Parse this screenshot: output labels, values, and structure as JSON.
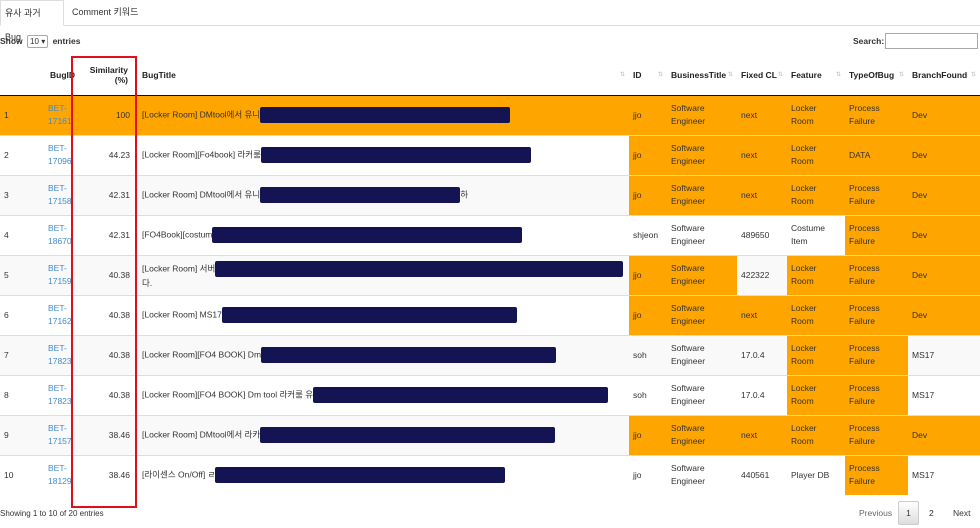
{
  "tabs": [
    "유사 과거 Bug",
    "Comment 키워드"
  ],
  "length_menu": {
    "prefix": "Show",
    "value": "10",
    "suffix": "entries"
  },
  "search": {
    "label": "Search:",
    "value": ""
  },
  "columns": [
    "BugID",
    "Similarity (%)",
    "BugTitle",
    "ID",
    "BusinessTitle",
    "Fixed CL",
    "Feature",
    "TypeOfBug",
    "BranchFound"
  ],
  "rows": [
    {
      "n": "1",
      "bug_id": "BET-17161",
      "similarity": "100",
      "title": "[Locker Room] DMtool에서 유니",
      "id": "jjo",
      "business_title": "Software Engineer",
      "fixed_cl": "next",
      "feature": "Locker Room",
      "type": "Process Failure",
      "branch": "Dev"
    },
    {
      "n": "2",
      "bug_id": "BET-17096",
      "similarity": "44.23",
      "title": "[Locker Room][Fo4book] 라커룸",
      "id": "jjo",
      "business_title": "Software Engineer",
      "fixed_cl": "next",
      "feature": "Locker Room",
      "type": "DATA",
      "branch": "Dev"
    },
    {
      "n": "3",
      "bug_id": "BET-17158",
      "similarity": "42.31",
      "title": "[Locker Room] DMtool에서 유니",
      "title_tail": "하",
      "id": "jjo",
      "business_title": "Software Engineer",
      "fixed_cl": "next",
      "feature": "Locker Room",
      "type": "Process Failure",
      "branch": "Dev"
    },
    {
      "n": "4",
      "bug_id": "BET-18670",
      "similarity": "42.31",
      "title": "[FO4Book][costum",
      "id": "shjeon",
      "business_title": "Software Engineer",
      "fixed_cl": "489650",
      "feature": "Costume Item",
      "type": "Process Failure",
      "branch": "Dev"
    },
    {
      "n": "5",
      "bug_id": "BET-17159",
      "similarity": "40.38",
      "title": "[Locker Room] 서버",
      "title_line2": "다.",
      "id": "jjo",
      "business_title": "Software Engineer",
      "fixed_cl": "422322",
      "feature": "Locker Room",
      "type": "Process Failure",
      "branch": "Dev"
    },
    {
      "n": "6",
      "bug_id": "BET-17162",
      "similarity": "40.38",
      "title": "[Locker Room] MS17",
      "id": "jjo",
      "business_title": "Software Engineer",
      "fixed_cl": "next",
      "feature": "Locker Room",
      "type": "Process Failure",
      "branch": "Dev"
    },
    {
      "n": "7",
      "bug_id": "BET-17823",
      "similarity": "40.38",
      "title": "[Locker Room][FO4 BOOK] Dm",
      "id": "soh",
      "business_title": "Software Engineer",
      "fixed_cl": "17.0.4",
      "feature": "Locker Room",
      "type": "Process Failure",
      "branch": "MS17"
    },
    {
      "n": "8",
      "bug_id": "BET-17823",
      "similarity": "40.38",
      "title": "[Locker Room][FO4 BOOK] Dm tool 라커룸 유",
      "id": "soh",
      "business_title": "Software Engineer",
      "fixed_cl": "17.0.4",
      "feature": "Locker Room",
      "type": "Process Failure",
      "branch": "MS17"
    },
    {
      "n": "9",
      "bug_id": "BET-17157",
      "similarity": "38.46",
      "title": "[Locker Room] DMtool에서 라카",
      "id": "jjo",
      "business_title": "Software Engineer",
      "fixed_cl": "next",
      "feature": "Locker Room",
      "type": "Process Failure",
      "branch": "Dev"
    },
    {
      "n": "10",
      "bug_id": "BET-18129",
      "similarity": "38.46",
      "title": "[라이센스 On/Off] ㄹ",
      "id": "jjo",
      "business_title": "Software Engineer",
      "fixed_cl": "440561",
      "feature": "Player DB",
      "type": "Process Failure",
      "branch": "MS17"
    }
  ],
  "info": "Showing 1 to 10 of 20 entries",
  "pagination": {
    "previous": "Previous",
    "pages": [
      "1",
      "2"
    ],
    "next": "Next"
  },
  "colors": {
    "highlight": "#ffa500",
    "redaction": "#141452",
    "annotation_box": "#e0101a",
    "link": "#428bca"
  }
}
